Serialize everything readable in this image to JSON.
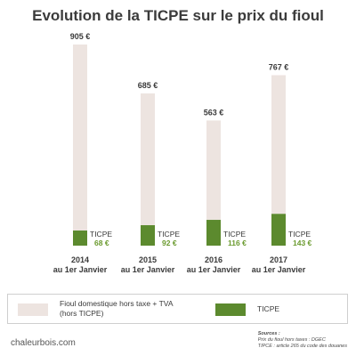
{
  "title": "Evolution de la TICPE sur le prix du fioul",
  "colors": {
    "light": "#ede4e0",
    "green": "#5c8a2e",
    "green_text": "#6a9a2e",
    "text": "#3a3a3a"
  },
  "chart_data": {
    "type": "bar",
    "stacked": true,
    "categories": [
      "2014",
      "2015",
      "2016",
      "2017"
    ],
    "category_sublabel": "au 1er Janvier",
    "series": [
      {
        "name": "Fioul domestique hors taxe + TVA (hors TICPE)",
        "values": [
          837,
          593,
          447,
          624
        ]
      },
      {
        "name": "TICPE",
        "values": [
          68,
          92,
          116,
          143
        ]
      }
    ],
    "totals": [
      905,
      685,
      563,
      767
    ],
    "total_labels": [
      "905 €",
      "685 €",
      "563 €",
      "767 €"
    ],
    "ticpe_labels": [
      "68 €",
      "92 €",
      "116 €",
      "143 €"
    ],
    "ticpe_caption": "TICPE",
    "ylim": [
      0,
      905
    ]
  },
  "legend": {
    "item1_line1": "Fioul domestique hors taxe + TVA",
    "item1_line2": "(hors TICPE)",
    "item2": "TICPE"
  },
  "footer": {
    "site": "chaleurbois.com",
    "sources_title": "Sources :",
    "source1": "Prix du fioul hors taxes : DGEC",
    "source2": "TIPCE : article 265 du code des douanes"
  }
}
